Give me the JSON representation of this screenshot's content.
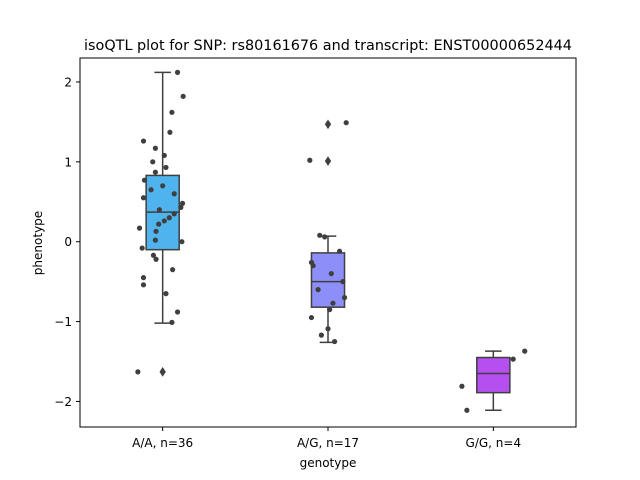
{
  "chart_data": {
    "type": "box",
    "title": "isoQTL plot for SNP: rs80161676 and transcript: ENST00000652444",
    "xlabel": "genotype",
    "ylabel": "phenotype",
    "ylim": [
      -2.32,
      2.3
    ],
    "yticks": [
      -2,
      -1,
      0,
      1,
      2
    ],
    "ytick_labels": [
      "−2",
      "−1",
      "0",
      "1",
      "2"
    ],
    "grid": false,
    "groups": [
      {
        "label": "A/A, n=36",
        "color": "#4fb3ee",
        "box": {
          "whisker_low": -1.02,
          "q1": -0.1,
          "median": 0.37,
          "q3": 0.83,
          "whisker_high": 2.12
        },
        "outliers": [
          -1.63
        ],
        "points": [
          {
            "dx": 0.45,
            "y": 2.12
          },
          {
            "dx": 0.62,
            "y": 1.82
          },
          {
            "dx": 0.28,
            "y": 1.62
          },
          {
            "dx": 0.22,
            "y": 1.37
          },
          {
            "dx": -0.58,
            "y": 1.26
          },
          {
            "dx": -0.22,
            "y": 1.17
          },
          {
            "dx": 0.05,
            "y": 1.08
          },
          {
            "dx": -0.3,
            "y": 1.0
          },
          {
            "dx": 0.1,
            "y": 0.93
          },
          {
            "dx": -0.22,
            "y": 0.87
          },
          {
            "dx": -0.55,
            "y": 0.77
          },
          {
            "dx": 0.0,
            "y": 0.7
          },
          {
            "dx": -0.35,
            "y": 0.65
          },
          {
            "dx": 0.35,
            "y": 0.6
          },
          {
            "dx": -0.58,
            "y": 0.55
          },
          {
            "dx": 0.6,
            "y": 0.48
          },
          {
            "dx": 0.55,
            "y": 0.43
          },
          {
            "dx": -0.1,
            "y": 0.4
          },
          {
            "dx": 0.35,
            "y": 0.35
          },
          {
            "dx": 0.2,
            "y": 0.3
          },
          {
            "dx": 0.05,
            "y": 0.26
          },
          {
            "dx": -0.12,
            "y": 0.22
          },
          {
            "dx": -0.7,
            "y": 0.17
          },
          {
            "dx": -0.2,
            "y": 0.13
          },
          {
            "dx": -0.22,
            "y": 0.02
          },
          {
            "dx": 0.58,
            "y": 0.0
          },
          {
            "dx": -0.62,
            "y": -0.08
          },
          {
            "dx": -0.28,
            "y": -0.17
          },
          {
            "dx": -0.2,
            "y": -0.22
          },
          {
            "dx": 0.3,
            "y": -0.35
          },
          {
            "dx": -0.58,
            "y": -0.45
          },
          {
            "dx": -0.58,
            "y": -0.54
          },
          {
            "dx": 0.1,
            "y": -0.65
          },
          {
            "dx": 0.45,
            "y": -0.88
          },
          {
            "dx": 0.28,
            "y": -1.01
          },
          {
            "dx": -0.75,
            "y": -1.63
          }
        ]
      },
      {
        "label": "A/G, n=17",
        "color": "#8e8ef9",
        "box": {
          "whisker_low": -1.26,
          "q1": -0.82,
          "median": -0.5,
          "q3": -0.14,
          "whisker_high": 0.07
        },
        "outliers": [
          1.01,
          1.47
        ],
        "points": [
          {
            "dx": 0.55,
            "y": 1.49
          },
          {
            "dx": -0.55,
            "y": 1.02
          },
          {
            "dx": -0.25,
            "y": 0.08
          },
          {
            "dx": -0.1,
            "y": 0.06
          },
          {
            "dx": 0.35,
            "y": -0.12
          },
          {
            "dx": -0.5,
            "y": -0.26
          },
          {
            "dx": -0.45,
            "y": -0.3
          },
          {
            "dx": 0.1,
            "y": -0.4
          },
          {
            "dx": 0.45,
            "y": -0.5
          },
          {
            "dx": -0.3,
            "y": -0.6
          },
          {
            "dx": 0.5,
            "y": -0.7
          },
          {
            "dx": 0.15,
            "y": -0.77
          },
          {
            "dx": 0.05,
            "y": -0.85
          },
          {
            "dx": -0.5,
            "y": -0.95
          },
          {
            "dx": 0.0,
            "y": -1.09
          },
          {
            "dx": -0.2,
            "y": -1.17
          },
          {
            "dx": 0.2,
            "y": -1.25
          }
        ]
      },
      {
        "label": "G/G, n=4",
        "color": "#b64ff0",
        "box": {
          "whisker_low": -2.11,
          "q1": -1.89,
          "median": -1.65,
          "q3": -1.45,
          "whisker_high": -1.37
        },
        "outliers": [],
        "points": [
          {
            "dx": 0.95,
            "y": -1.37
          },
          {
            "dx": 0.6,
            "y": -1.47
          },
          {
            "dx": -0.95,
            "y": -1.81
          },
          {
            "dx": -0.8,
            "y": -2.11
          }
        ]
      }
    ]
  }
}
